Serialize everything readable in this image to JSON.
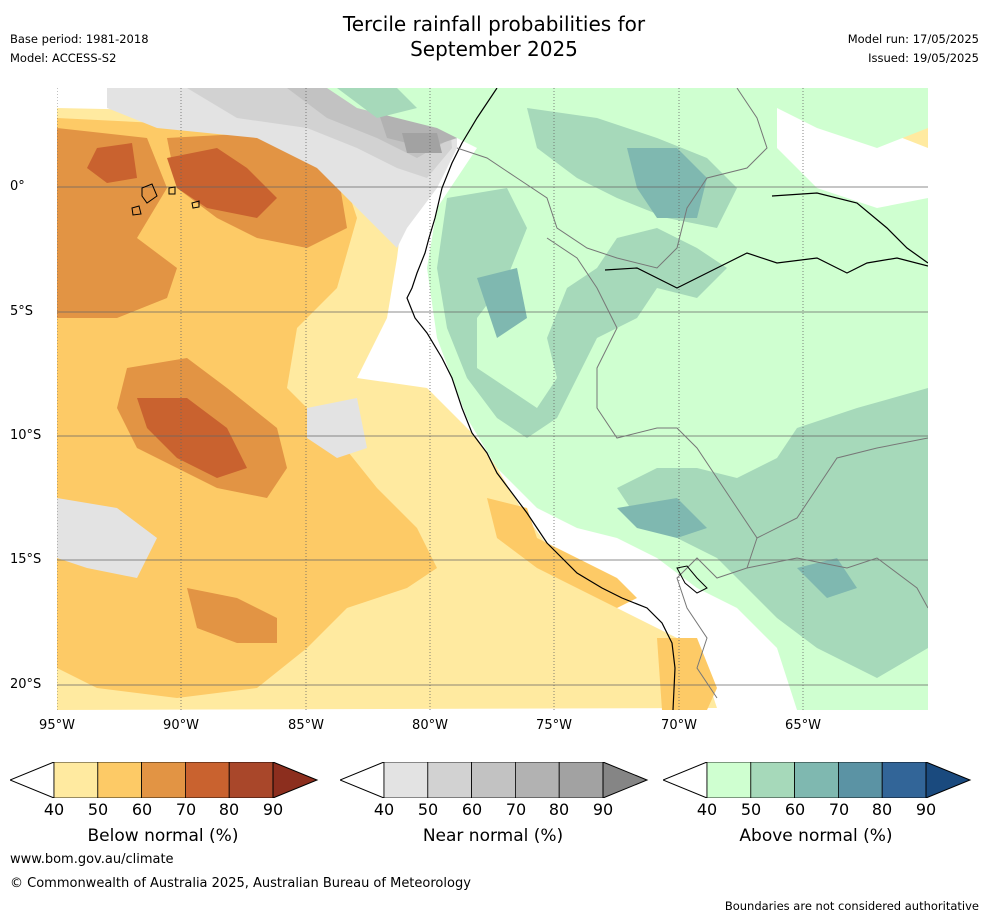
{
  "title_line1": "Tercile rainfall probabilities for",
  "title_line2": "September 2025",
  "base_period": "Base period: 1981-2018",
  "model": "Model: ACCESS-S2",
  "model_run": "Model run: 17/05/2025",
  "issued": "Issued: 19/05/2025",
  "lat_labels": [
    "0°",
    "5°S",
    "10°S",
    "15°S",
    "20°S"
  ],
  "lon_labels": [
    "95°W",
    "90°W",
    "85°W",
    "80°W",
    "75°W",
    "70°W",
    "65°W"
  ],
  "colorbars": [
    {
      "title": "Below normal (%)",
      "ticks": [
        "40",
        "50",
        "60",
        "70",
        "80",
        "90"
      ],
      "colors": [
        "#ffeaa0",
        "#fdca66",
        "#e29444",
        "#c9622f",
        "#a9472a",
        "#8c2e1e"
      ]
    },
    {
      "title": "Near normal (%)",
      "ticks": [
        "40",
        "50",
        "60",
        "70",
        "80",
        "90"
      ],
      "colors": [
        "#e3e3e3",
        "#d2d2d2",
        "#c2c2c2",
        "#b2b2b2",
        "#a2a2a2",
        "#858585"
      ]
    },
    {
      "title": "Above normal (%)",
      "ticks": [
        "40",
        "50",
        "60",
        "70",
        "80",
        "90"
      ],
      "colors": [
        "#cfffd0",
        "#a6d9ba",
        "#7fb8b0",
        "#5b93a4",
        "#326598",
        "#1a4a7e"
      ]
    }
  ],
  "footer_url": "www.bom.gov.au/climate",
  "footer_copyright": "© Commonwealth of Australia 2025, Australian Bureau of Meteorology",
  "disclaimer": "Boundaries are not considered authoritative"
}
